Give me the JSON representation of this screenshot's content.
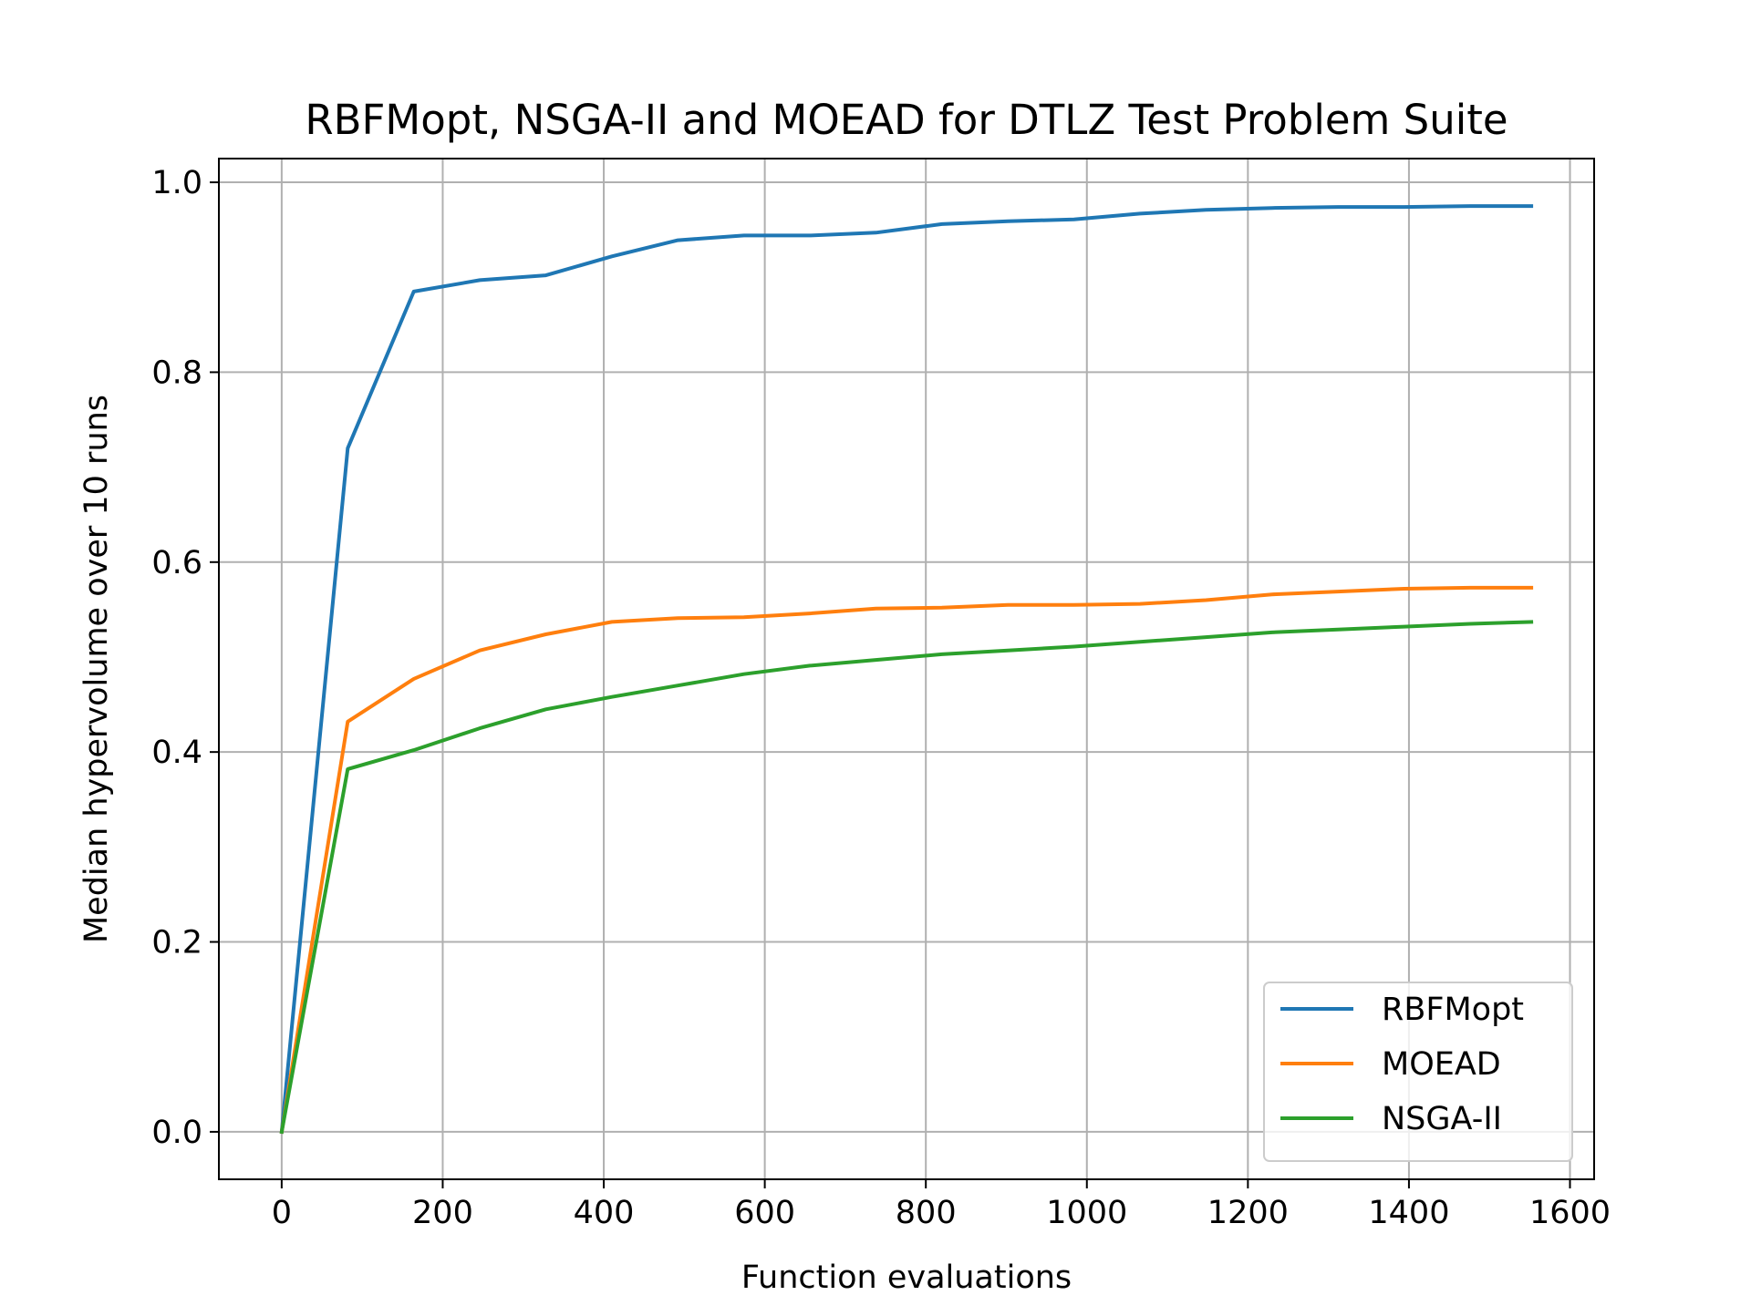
{
  "chart_data": {
    "type": "line",
    "title": "RBFMopt, NSGA-II and MOEAD for DTLZ Test Problem Suite",
    "xlabel": "Function evaluations",
    "ylabel": "Median hypervolume over 10 runs",
    "xlim": [
      -78,
      1630
    ],
    "ylim": [
      -0.05,
      1.025
    ],
    "xticks": [
      0,
      200,
      400,
      600,
      800,
      1000,
      1200,
      1400,
      1600
    ],
    "xtick_labels": [
      "0",
      "200",
      "400",
      "600",
      "800",
      "1000",
      "1200",
      "1400",
      "1600"
    ],
    "yticks": [
      0.0,
      0.2,
      0.4,
      0.6,
      0.8,
      1.0
    ],
    "ytick_labels": [
      "0.0",
      "0.2",
      "0.4",
      "0.6",
      "0.8",
      "1.0"
    ],
    "grid": true,
    "legend_position": "lower right",
    "x": [
      0,
      82,
      164,
      246,
      328,
      410,
      492,
      574,
      656,
      738,
      820,
      902,
      984,
      1066,
      1148,
      1230,
      1312,
      1394,
      1476,
      1552
    ],
    "series": [
      {
        "name": "RBFMopt",
        "color": "#1f77b4",
        "values": [
          0.0,
          0.72,
          0.885,
          0.897,
          0.902,
          0.922,
          0.939,
          0.944,
          0.944,
          0.947,
          0.956,
          0.959,
          0.961,
          0.967,
          0.971,
          0.973,
          0.974,
          0.974,
          0.975,
          0.975
        ]
      },
      {
        "name": "MOEAD",
        "color": "#ff7f0e",
        "values": [
          0.0,
          0.432,
          0.477,
          0.507,
          0.524,
          0.537,
          0.541,
          0.542,
          0.546,
          0.551,
          0.552,
          0.555,
          0.555,
          0.556,
          0.56,
          0.566,
          0.569,
          0.572,
          0.573,
          0.573
        ]
      },
      {
        "name": "NSGA-II",
        "color": "#2ca02c",
        "values": [
          0.0,
          0.382,
          0.402,
          0.425,
          0.445,
          0.458,
          0.47,
          0.482,
          0.491,
          0.497,
          0.503,
          0.507,
          0.511,
          0.516,
          0.521,
          0.526,
          0.529,
          0.532,
          0.535,
          0.537
        ]
      }
    ]
  }
}
